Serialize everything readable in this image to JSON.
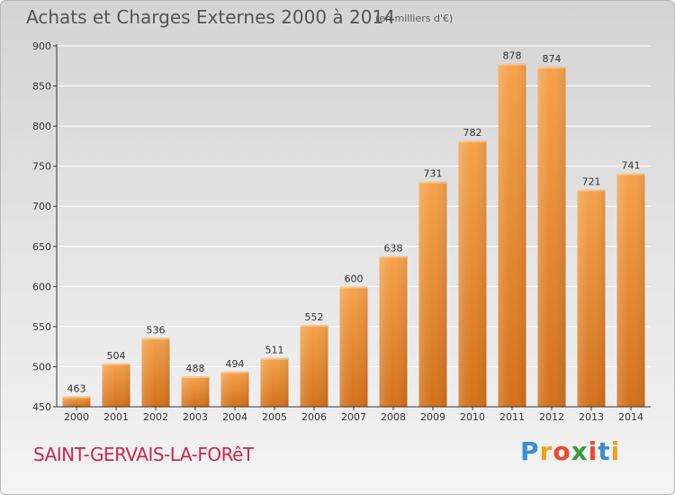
{
  "header": {
    "title": "Achats et Charges Externes 2000 à 2014",
    "subtitle": "(en milliers d'€)"
  },
  "footer": {
    "commune": "SAINT-GERVAIS-LA-FORêT",
    "logo_text": "Proxiti",
    "logo_letters": [
      {
        "ch": "P",
        "color": "#3a8fd0"
      },
      {
        "ch": "r",
        "color": "#f0a018"
      },
      {
        "ch": "o",
        "color": "#e84a2a"
      },
      {
        "ch": "x",
        "color": "#3a9a3a"
      },
      {
        "ch": "i",
        "color": "#e84a2a"
      },
      {
        "ch": "t",
        "color": "#3a8fd0"
      },
      {
        "ch": "i",
        "color": "#f0a018"
      }
    ]
  },
  "colors": {
    "bar_light": "#f5a24b",
    "bar_dark": "#d3701a",
    "grid": "#ffffff",
    "axis": "#333333",
    "text": "#333333"
  },
  "chart_data": {
    "type": "bar",
    "title": "Achats et Charges Externes 2000 à 2014",
    "subtitle": "(en milliers d'€)",
    "categories": [
      "2000",
      "2001",
      "2002",
      "2003",
      "2004",
      "2005",
      "2006",
      "2007",
      "2008",
      "2009",
      "2010",
      "2011",
      "2012",
      "2013",
      "2014"
    ],
    "values": [
      463,
      504,
      536,
      488,
      494,
      511,
      552,
      600,
      638,
      731,
      782,
      878,
      874,
      721,
      741
    ],
    "ylim": [
      450,
      900
    ],
    "yticks": [
      450,
      500,
      550,
      600,
      650,
      700,
      750,
      800,
      850,
      900
    ],
    "grid": true,
    "legend": "none",
    "data_labels": true
  }
}
